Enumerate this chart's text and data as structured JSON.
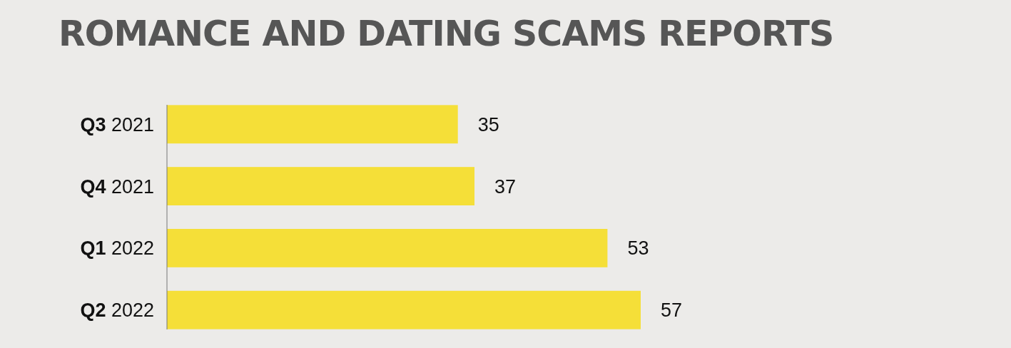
{
  "chart_data": {
    "type": "bar",
    "orientation": "horizontal",
    "title": "ROMANCE AND DATING SCAMS REPORTS",
    "categories": [
      "Q3 2021",
      "Q4 2021",
      "Q1 2022",
      "Q2 2022"
    ],
    "values": [
      35,
      37,
      53,
      57
    ],
    "color": "#f5df38",
    "data_labels": true
  }
}
